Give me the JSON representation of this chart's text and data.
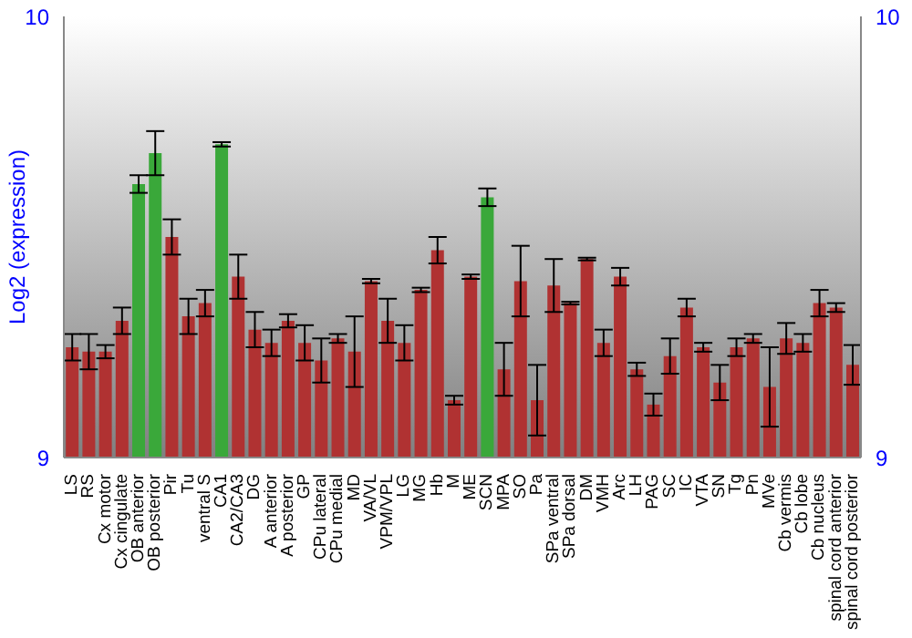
{
  "chart_data": {
    "type": "bar",
    "ylabel": "Log2 (expression)",
    "categories": [
      "LS",
      "RS",
      "Cx motor",
      "Cx cingulate",
      "OB anterior",
      "OB posterior",
      "Pir",
      "Tu",
      "ventral S",
      "CA1",
      "CA2/CA3",
      "DG",
      "A anterior",
      "A posterior",
      "GP",
      "CPu lateral",
      "CPu medial",
      "MD",
      "VA/VL",
      "VPM/VPL",
      "LG",
      "MG",
      "Hb",
      "M",
      "ME",
      "SCN",
      "MPA",
      "SO",
      "Pa",
      "SPa ventral",
      "SPa dorsal",
      "DM",
      "VMH",
      "Arc",
      "LH",
      "PAG",
      "SC",
      "IC",
      "VTA",
      "SN",
      "Tg",
      "Pn",
      "MVe",
      "Cb vermis",
      "Cb lobe",
      "Cb nucleus",
      "spinal cord anterior",
      "spinal cord posterior"
    ],
    "values": [
      9.25,
      9.24,
      9.24,
      9.31,
      9.62,
      9.69,
      9.5,
      9.32,
      9.35,
      9.71,
      9.41,
      9.29,
      9.26,
      9.31,
      9.26,
      9.22,
      9.27,
      9.24,
      9.4,
      9.31,
      9.26,
      9.38,
      9.47,
      9.13,
      9.41,
      9.59,
      9.2,
      9.4,
      9.13,
      9.39,
      9.35,
      9.45,
      9.26,
      9.41,
      9.2,
      9.12,
      9.23,
      9.34,
      9.25,
      9.17,
      9.25,
      9.27,
      9.16,
      9.27,
      9.26,
      9.35,
      9.34,
      9.21
    ],
    "errors": [
      0.03,
      0.04,
      0.015,
      0.03,
      0.02,
      0.05,
      0.04,
      0.04,
      0.03,
      0.005,
      0.05,
      0.04,
      0.03,
      0.015,
      0.04,
      0.05,
      0.01,
      0.08,
      0.005,
      0.05,
      0.04,
      0.005,
      0.03,
      0.01,
      0.005,
      0.02,
      0.06,
      0.08,
      0.08,
      0.06,
      0.003,
      0.003,
      0.03,
      0.02,
      0.015,
      0.025,
      0.04,
      0.02,
      0.01,
      0.04,
      0.02,
      0.01,
      0.09,
      0.035,
      0.02,
      0.03,
      0.01,
      0.045
    ],
    "colors": [
      "#b03232",
      "#b03232",
      "#b03232",
      "#b03232",
      "#3aa83a",
      "#3aa83a",
      "#b03232",
      "#b03232",
      "#b03232",
      "#3aa83a",
      "#b03232",
      "#b03232",
      "#b03232",
      "#b03232",
      "#b03232",
      "#b03232",
      "#b03232",
      "#b03232",
      "#b03232",
      "#b03232",
      "#b03232",
      "#b03232",
      "#b03232",
      "#b03232",
      "#b03232",
      "#3aa83a",
      "#b03232",
      "#b03232",
      "#b03232",
      "#b03232",
      "#b03232",
      "#b03232",
      "#b03232",
      "#b03232",
      "#b03232",
      "#b03232",
      "#b03232",
      "#b03232",
      "#b03232",
      "#b03232",
      "#b03232",
      "#b03232",
      "#b03232",
      "#b03232",
      "#b03232",
      "#b03232",
      "#b03232",
      "#b03232"
    ],
    "ylim": [
      9,
      10
    ],
    "yticks": [
      9,
      10
    ],
    "y2lim": [
      9,
      10
    ],
    "y2ticks": [
      9,
      10
    ],
    "grid": false,
    "legend": false
  }
}
